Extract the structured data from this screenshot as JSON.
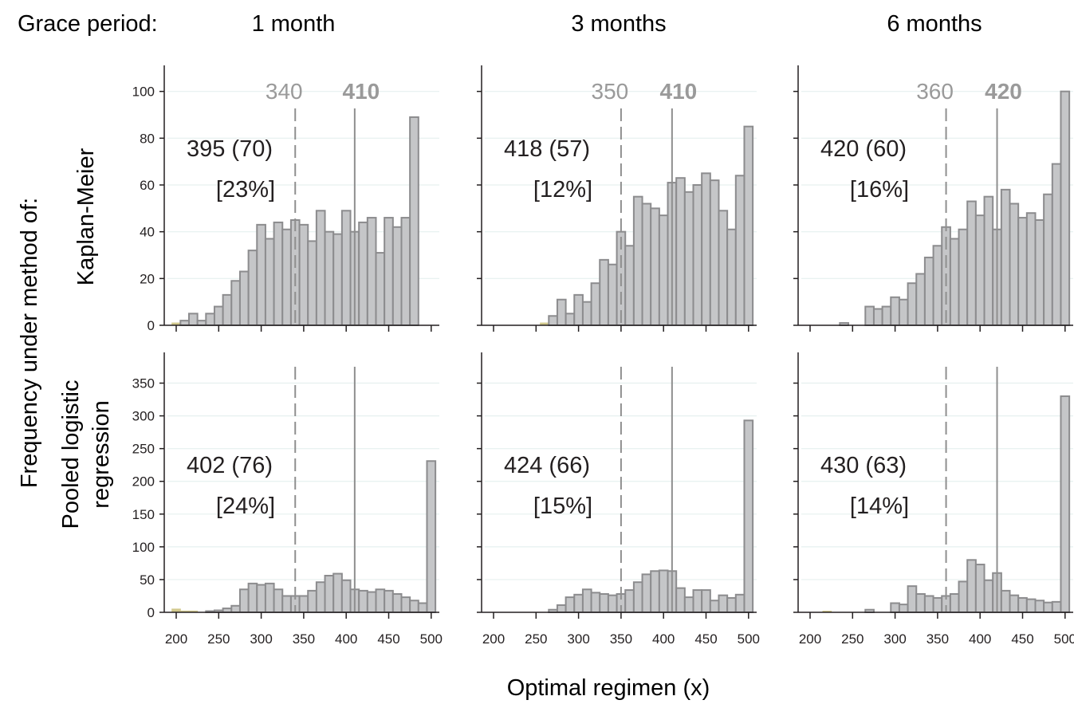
{
  "figure": {
    "grace_label": "Grace period:",
    "x_axis_label": "Optimal regimen (x)",
    "y_axis_label": "Frequency under method of:",
    "columns": [
      "1 month",
      "3 months",
      "6 months"
    ],
    "rows": [
      {
        "label_lines": [
          "Kaplan-Meier"
        ]
      },
      {
        "label_lines": [
          "Pooled logistic",
          "regression"
        ]
      }
    ]
  },
  "colors": {
    "bar_fill": "#c5c6c8",
    "bar_stroke": "#8c8c8e",
    "highlight": "#d2c98e",
    "ref_line": "#8f8f8f",
    "ref_label": "#9a9a9a",
    "gridline": "#e6f0ef",
    "axis": "#231f20"
  },
  "chart_data": [
    {
      "type": "bar",
      "row": 0,
      "col": 0,
      "bin_width": 10,
      "xlim": [
        185,
        510
      ],
      "ylim": [
        0,
        105
      ],
      "x_ticks": [
        200,
        250,
        300,
        350,
        400,
        450,
        500
      ],
      "show_x_tick_labels": false,
      "y_ticks": [
        0,
        20,
        40,
        60,
        80,
        100
      ],
      "show_y_tick_labels": true,
      "dashed_line_x": 340,
      "solid_line_x": 410,
      "dashed_label": "340",
      "solid_label": "410",
      "annotation_value": "395 (70)",
      "annotation_pct": "[23%]",
      "bins": [
        [
          200,
          1
        ],
        [
          210,
          2
        ],
        [
          220,
          5
        ],
        [
          230,
          2
        ],
        [
          240,
          5
        ],
        [
          250,
          8
        ],
        [
          260,
          13
        ],
        [
          270,
          19
        ],
        [
          280,
          23
        ],
        [
          290,
          32
        ],
        [
          300,
          43
        ],
        [
          310,
          37
        ],
        [
          320,
          44
        ],
        [
          330,
          41
        ],
        [
          340,
          45
        ],
        [
          350,
          43
        ],
        [
          360,
          36
        ],
        [
          370,
          49
        ],
        [
          380,
          40
        ],
        [
          390,
          39
        ],
        [
          400,
          49
        ],
        [
          410,
          40
        ],
        [
          420,
          44
        ],
        [
          430,
          46
        ],
        [
          440,
          31
        ],
        [
          450,
          46
        ],
        [
          460,
          42
        ],
        [
          470,
          46
        ],
        [
          480,
          89
        ]
      ],
      "highlight_bins": [
        200
      ]
    },
    {
      "type": "bar",
      "row": 0,
      "col": 1,
      "bin_width": 10,
      "xlim": [
        185,
        510
      ],
      "ylim": [
        0,
        105
      ],
      "x_ticks": [
        200,
        250,
        300,
        350,
        400,
        450,
        500
      ],
      "show_x_tick_labels": false,
      "y_ticks": [
        0,
        20,
        40,
        60,
        80,
        100
      ],
      "show_y_tick_labels": false,
      "dashed_line_x": 350,
      "solid_line_x": 410,
      "dashed_label": "350",
      "solid_label": "410",
      "annotation_value": "418 (57)",
      "annotation_pct": "[12%]",
      "bins": [
        [
          260,
          1
        ],
        [
          270,
          4
        ],
        [
          280,
          11
        ],
        [
          290,
          5
        ],
        [
          300,
          13
        ],
        [
          310,
          10
        ],
        [
          320,
          18
        ],
        [
          330,
          28
        ],
        [
          340,
          26
        ],
        [
          350,
          40
        ],
        [
          360,
          34
        ],
        [
          370,
          55
        ],
        [
          380,
          52
        ],
        [
          390,
          50
        ],
        [
          400,
          47
        ],
        [
          410,
          61
        ],
        [
          420,
          63
        ],
        [
          430,
          57
        ],
        [
          440,
          60
        ],
        [
          450,
          65
        ],
        [
          460,
          62
        ],
        [
          470,
          49
        ],
        [
          480,
          41
        ],
        [
          490,
          64
        ],
        [
          500,
          85
        ]
      ],
      "highlight_bins": [
        260
      ]
    },
    {
      "type": "bar",
      "row": 0,
      "col": 2,
      "bin_width": 10,
      "xlim": [
        185,
        510
      ],
      "ylim": [
        0,
        105
      ],
      "x_ticks": [
        200,
        250,
        300,
        350,
        400,
        450,
        500
      ],
      "show_x_tick_labels": false,
      "y_ticks": [
        0,
        20,
        40,
        60,
        80,
        100
      ],
      "show_y_tick_labels": false,
      "dashed_line_x": 360,
      "solid_line_x": 420,
      "dashed_label": "360",
      "solid_label": "420",
      "annotation_value": "420 (60)",
      "annotation_pct": "[16%]",
      "bins": [
        [
          240,
          1
        ],
        [
          270,
          8
        ],
        [
          280,
          7
        ],
        [
          290,
          8
        ],
        [
          300,
          12
        ],
        [
          310,
          11
        ],
        [
          320,
          18
        ],
        [
          330,
          22
        ],
        [
          340,
          29
        ],
        [
          350,
          34
        ],
        [
          360,
          42
        ],
        [
          370,
          37
        ],
        [
          380,
          41
        ],
        [
          390,
          53
        ],
        [
          400,
          47
        ],
        [
          410,
          55
        ],
        [
          420,
          41
        ],
        [
          430,
          58
        ],
        [
          440,
          52
        ],
        [
          450,
          46
        ],
        [
          460,
          48
        ],
        [
          470,
          45
        ],
        [
          480,
          56
        ],
        [
          490,
          69
        ],
        [
          500,
          100
        ]
      ],
      "highlight_bins": []
    },
    {
      "type": "bar",
      "row": 1,
      "col": 0,
      "bin_width": 10,
      "xlim": [
        185,
        510
      ],
      "ylim": [
        0,
        375
      ],
      "x_ticks": [
        200,
        250,
        300,
        350,
        400,
        450,
        500
      ],
      "show_x_tick_labels": true,
      "y_ticks": [
        0,
        50,
        100,
        150,
        200,
        250,
        300,
        350
      ],
      "show_y_tick_labels": true,
      "dashed_line_x": 340,
      "solid_line_x": 410,
      "dashed_label": "",
      "solid_label": "",
      "annotation_value": "402 (76)",
      "annotation_pct": "[24%]",
      "bins": [
        [
          200,
          5
        ],
        [
          210,
          2
        ],
        [
          220,
          2
        ],
        [
          240,
          1
        ],
        [
          250,
          3
        ],
        [
          260,
          6
        ],
        [
          270,
          10
        ],
        [
          280,
          35
        ],
        [
          290,
          44
        ],
        [
          300,
          42
        ],
        [
          310,
          44
        ],
        [
          320,
          35
        ],
        [
          330,
          25
        ],
        [
          340,
          25
        ],
        [
          350,
          25
        ],
        [
          360,
          33
        ],
        [
          370,
          46
        ],
        [
          380,
          56
        ],
        [
          390,
          59
        ],
        [
          400,
          49
        ],
        [
          410,
          35
        ],
        [
          420,
          33
        ],
        [
          430,
          31
        ],
        [
          440,
          35
        ],
        [
          450,
          33
        ],
        [
          460,
          28
        ],
        [
          470,
          23
        ],
        [
          480,
          18
        ],
        [
          490,
          14
        ],
        [
          500,
          231
        ]
      ],
      "highlight_bins": [
        200,
        210,
        220
      ]
    },
    {
      "type": "bar",
      "row": 1,
      "col": 1,
      "bin_width": 10,
      "xlim": [
        185,
        510
      ],
      "ylim": [
        0,
        375
      ],
      "x_ticks": [
        200,
        250,
        300,
        350,
        400,
        450,
        500
      ],
      "show_x_tick_labels": true,
      "y_ticks": [
        0,
        50,
        100,
        150,
        200,
        250,
        300,
        350
      ],
      "show_y_tick_labels": false,
      "dashed_line_x": 350,
      "solid_line_x": 410,
      "dashed_label": "",
      "solid_label": "",
      "annotation_value": "424 (66)",
      "annotation_pct": "[15%]",
      "bins": [
        [
          270,
          4
        ],
        [
          280,
          11
        ],
        [
          290,
          23
        ],
        [
          300,
          27
        ],
        [
          310,
          35
        ],
        [
          320,
          30
        ],
        [
          330,
          28
        ],
        [
          340,
          26
        ],
        [
          350,
          28
        ],
        [
          360,
          34
        ],
        [
          370,
          46
        ],
        [
          380,
          58
        ],
        [
          390,
          63
        ],
        [
          400,
          64
        ],
        [
          410,
          63
        ],
        [
          420,
          37
        ],
        [
          430,
          23
        ],
        [
          440,
          34
        ],
        [
          450,
          34
        ],
        [
          460,
          18
        ],
        [
          470,
          26
        ],
        [
          480,
          22
        ],
        [
          490,
          27
        ],
        [
          500,
          293
        ]
      ],
      "highlight_bins": []
    },
    {
      "type": "bar",
      "row": 1,
      "col": 2,
      "bin_width": 10,
      "xlim": [
        185,
        510
      ],
      "ylim": [
        0,
        375
      ],
      "x_ticks": [
        200,
        250,
        300,
        350,
        400,
        450,
        500
      ],
      "show_x_tick_labels": true,
      "y_ticks": [
        0,
        50,
        100,
        150,
        200,
        250,
        300,
        350
      ],
      "show_y_tick_labels": false,
      "dashed_line_x": 360,
      "solid_line_x": 420,
      "dashed_label": "",
      "solid_label": "",
      "annotation_value": "430 (63)",
      "annotation_pct": "[14%]",
      "bins": [
        [
          220,
          1
        ],
        [
          270,
          4
        ],
        [
          300,
          14
        ],
        [
          310,
          12
        ],
        [
          320,
          40
        ],
        [
          330,
          28
        ],
        [
          340,
          25
        ],
        [
          350,
          22
        ],
        [
          360,
          25
        ],
        [
          370,
          28
        ],
        [
          380,
          47
        ],
        [
          390,
          80
        ],
        [
          400,
          73
        ],
        [
          410,
          49
        ],
        [
          420,
          60
        ],
        [
          430,
          33
        ],
        [
          440,
          26
        ],
        [
          450,
          22
        ],
        [
          460,
          20
        ],
        [
          470,
          18
        ],
        [
          480,
          15
        ],
        [
          490,
          16
        ],
        [
          500,
          330
        ]
      ],
      "highlight_bins": [
        220
      ]
    }
  ]
}
